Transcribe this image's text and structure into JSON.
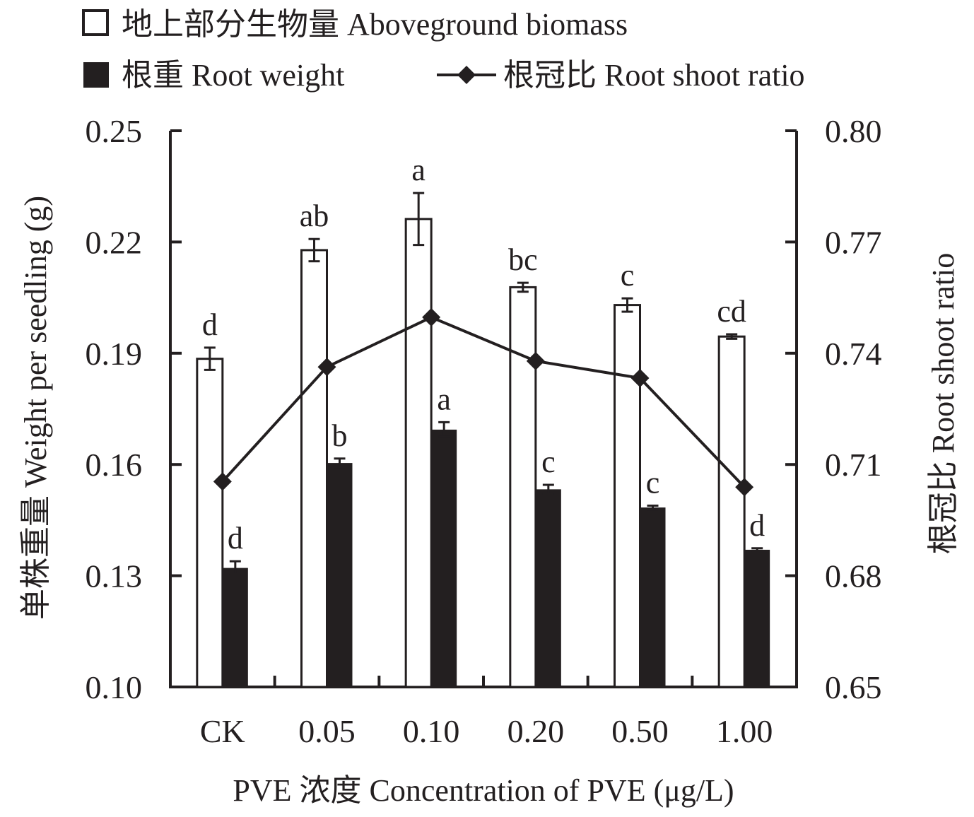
{
  "chart_data": {
    "type": "bar",
    "categories": [
      "CK",
      "0.05",
      "0.10",
      "0.20",
      "0.50",
      "1.00"
    ],
    "xlabel": "PVE 浓度 Concentration of PVE (μg/L)",
    "ylabel": "单株重量 Weight per seedling (g)",
    "y2label": "根冠比 Root shoot ratio",
    "ylim": [
      0.1,
      0.25
    ],
    "y2lim": [
      0.65,
      0.8
    ],
    "yticks": [
      "0.10",
      "0.13",
      "0.16",
      "0.19",
      "0.22",
      "0.25"
    ],
    "y2ticks": [
      "0.65",
      "0.68",
      "0.71",
      "0.74",
      "0.77",
      "0.80"
    ],
    "legend_position": "top",
    "series": [
      {
        "name": "地上部分生物量 Aboveground biomass",
        "type": "bar",
        "fill": "#ffffff",
        "values": [
          0.1885,
          0.2178,
          0.2262,
          0.2078,
          0.203,
          0.1945
        ],
        "errors": [
          0.003,
          0.003,
          0.007,
          0.0012,
          0.0018,
          0.0006
        ],
        "labels": [
          "d",
          "ab",
          "a",
          "bc",
          "c",
          "cd"
        ]
      },
      {
        "name": "根重 Root weight",
        "type": "bar",
        "fill": "#231f20",
        "values": [
          0.1321,
          0.1604,
          0.1694,
          0.1533,
          0.1484,
          0.137
        ],
        "errors": [
          0.0018,
          0.0012,
          0.002,
          0.0012,
          0.0005,
          0.0004
        ],
        "labels": [
          "d",
          "b",
          "a",
          "c",
          "c",
          "d"
        ]
      },
      {
        "name": "根冠比 Root shoot ratio",
        "type": "line",
        "axis": "right",
        "marker": "diamond",
        "values": [
          0.7054,
          0.7363,
          0.7497,
          0.7379,
          0.7333,
          0.7039
        ]
      }
    ]
  }
}
